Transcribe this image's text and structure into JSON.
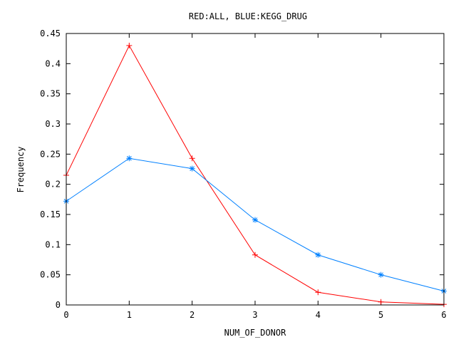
{
  "chart_data": {
    "type": "line",
    "title": "RED:ALL, BLUE:KEGG_DRUG",
    "xlabel": "NUM_OF_DONOR",
    "ylabel": "Frequency",
    "xlim": [
      0,
      6
    ],
    "ylim": [
      0,
      0.45
    ],
    "x_ticks": [
      "0",
      "1",
      "2",
      "3",
      "4",
      "5",
      "6"
    ],
    "y_ticks": [
      "0",
      "0.05",
      "0.1",
      "0.15",
      "0.2",
      "0.25",
      "0.3",
      "0.35",
      "0.4",
      "0.45"
    ],
    "grid": false,
    "legend": "none",
    "x": [
      0,
      1,
      2,
      3,
      4,
      5,
      6
    ],
    "series": [
      {
        "color": "#ff0000",
        "marker": "plus",
        "values": [
          0.215,
          0.43,
          0.243,
          0.083,
          0.021,
          0.005,
          0.001
        ]
      },
      {
        "color": "#0080ff",
        "marker": "star",
        "values": [
          0.172,
          0.243,
          0.226,
          0.141,
          0.083,
          0.05,
          0.023
        ]
      }
    ]
  }
}
